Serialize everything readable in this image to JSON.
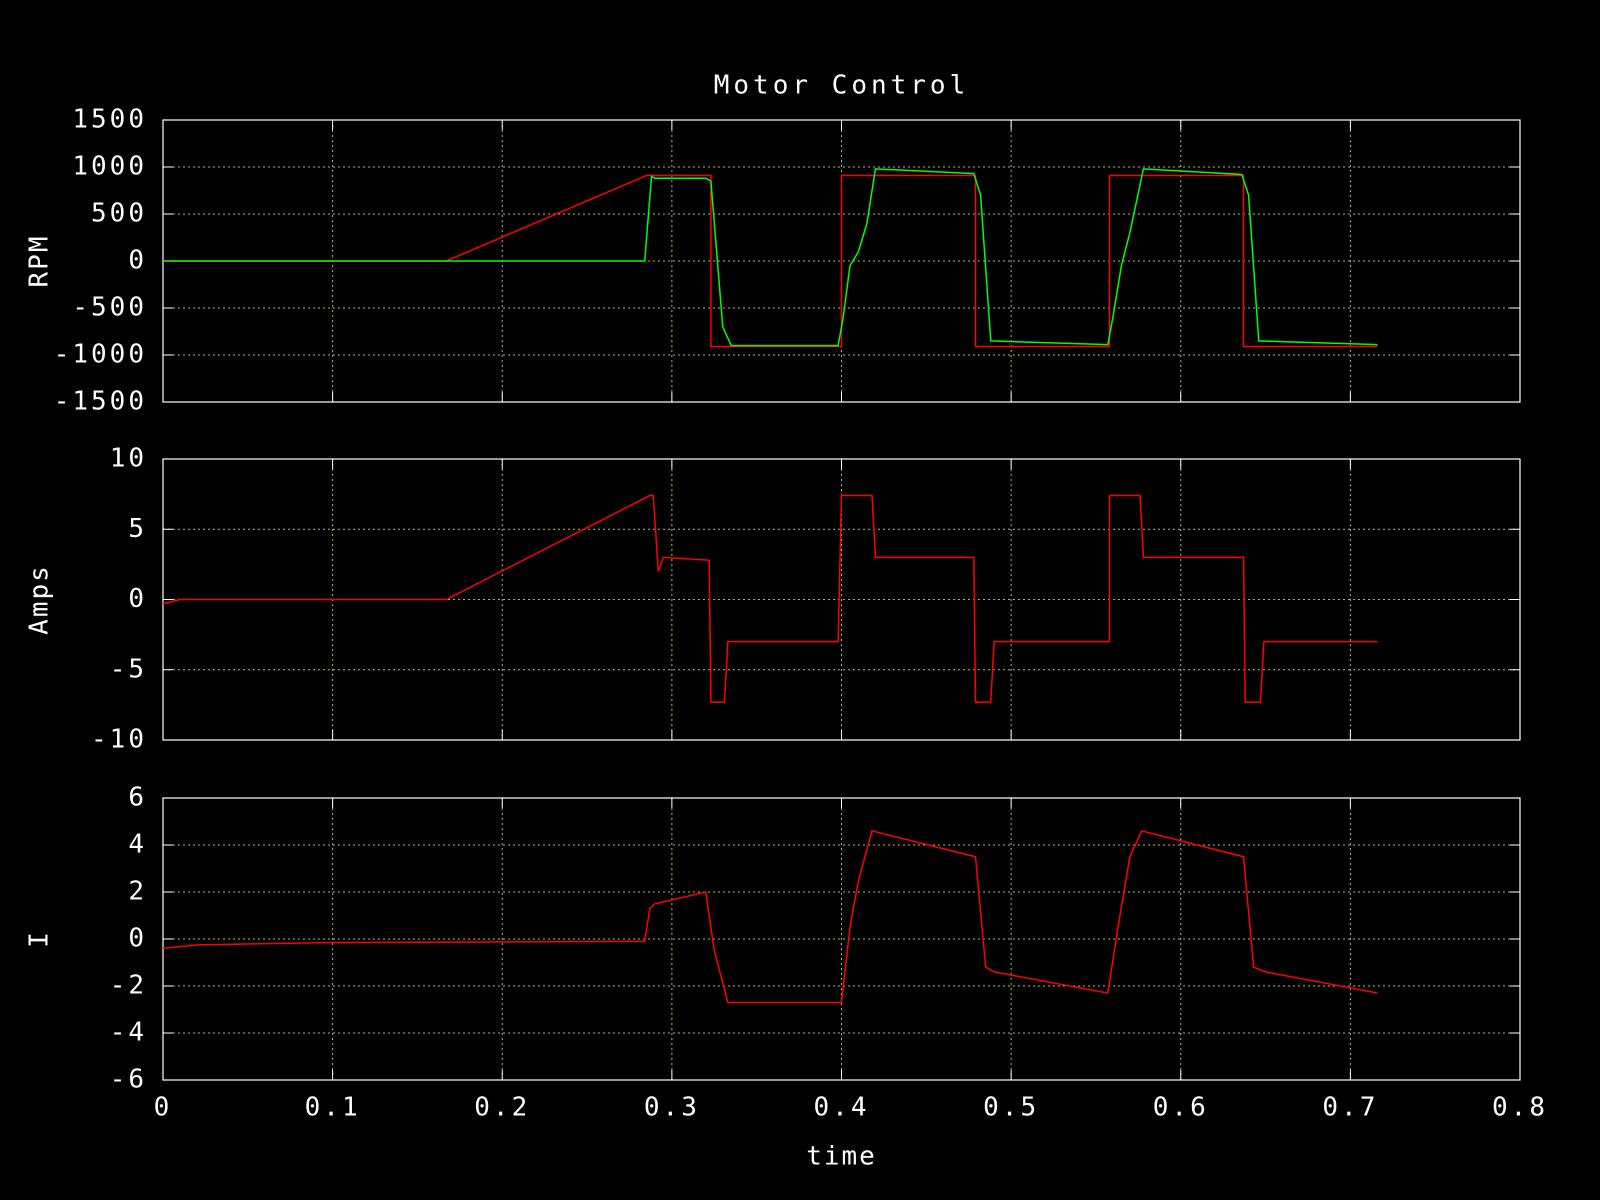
{
  "chart_data": [
    {
      "type": "line",
      "title": "Motor Control",
      "y_label": "RPM",
      "xlim": [
        0,
        0.8
      ],
      "xticks": [
        0,
        0.1,
        0.2,
        0.3,
        0.4,
        0.5,
        0.6,
        0.7,
        0.8
      ],
      "show_xtick_labels": false,
      "ylim": [
        -1500,
        1500
      ],
      "yticks": [
        -1500,
        -1000,
        -500,
        0,
        500,
        1000,
        1500
      ],
      "grid": true,
      "series": [
        {
          "color": "#ff0000",
          "x": [
            0,
            0.167,
            0.285,
            0.323,
            0.323,
            0.4,
            0.4,
            0.479,
            0.479,
            0.558,
            0.558,
            0.637,
            0.637,
            0.716
          ],
          "values": [
            0,
            0,
            910,
            910,
            -910,
            -910,
            910,
            910,
            -910,
            -910,
            910,
            910,
            -910,
            -910
          ]
        },
        {
          "color": "#00ff00",
          "x": [
            0,
            0.284,
            0.288,
            0.29,
            0.32,
            0.323,
            0.33,
            0.335,
            0.398,
            0.401,
            0.405,
            0.41,
            0.415,
            0.42,
            0.478,
            0.482,
            0.488,
            0.557,
            0.56,
            0.565,
            0.57,
            0.578,
            0.636,
            0.64,
            0.646,
            0.716
          ],
          "values": [
            0,
            0,
            900,
            880,
            880,
            850,
            -700,
            -900,
            -900,
            -600,
            -50,
            100,
            400,
            980,
            930,
            700,
            -850,
            -890,
            -600,
            -50,
            300,
            980,
            920,
            700,
            -850,
            -890
          ]
        }
      ]
    },
    {
      "type": "line",
      "y_label": "Amps",
      "xlim": [
        0,
        0.8
      ],
      "xticks": [
        0,
        0.1,
        0.2,
        0.3,
        0.4,
        0.5,
        0.6,
        0.7,
        0.8
      ],
      "show_xtick_labels": false,
      "ylim": [
        -10,
        10
      ],
      "yticks": [
        -10,
        -5,
        0,
        5,
        10
      ],
      "grid": true,
      "series": [
        {
          "color": "#ff0000",
          "x": [
            0,
            0.01,
            0.167,
            0.287,
            0.289,
            0.292,
            0.295,
            0.322,
            0.323,
            0.331,
            0.333,
            0.398,
            0.4,
            0.418,
            0.42,
            0.478,
            0.479,
            0.488,
            0.49,
            0.558,
            0.558,
            0.576,
            0.578,
            0.637,
            0.638,
            0.647,
            0.649,
            0.716
          ],
          "values": [
            -0.3,
            0,
            0,
            7.4,
            7.4,
            2,
            3,
            2.8,
            -7.3,
            -7.3,
            -3,
            -3,
            7.4,
            7.4,
            3,
            3,
            -7.3,
            -7.3,
            -3,
            -3,
            7.4,
            7.4,
            3,
            3,
            -7.3,
            -7.3,
            -3,
            -3
          ]
        }
      ]
    },
    {
      "type": "line",
      "y_label": "I",
      "x_label": "time",
      "xlim": [
        0,
        0.8
      ],
      "xticks": [
        0,
        0.1,
        0.2,
        0.3,
        0.4,
        0.5,
        0.6,
        0.7,
        0.8
      ],
      "show_xtick_labels": true,
      "ylim": [
        -6,
        6
      ],
      "yticks": [
        -6,
        -4,
        -2,
        0,
        2,
        4,
        6
      ],
      "grid": true,
      "series": [
        {
          "color": "#ff0000",
          "x": [
            0,
            0.02,
            0.1,
            0.284,
            0.287,
            0.29,
            0.32,
            0.325,
            0.333,
            0.4,
            0.405,
            0.41,
            0.418,
            0.479,
            0.485,
            0.49,
            0.557,
            0.563,
            0.57,
            0.577,
            0.637,
            0.643,
            0.65,
            0.716
          ],
          "values": [
            -0.4,
            -0.25,
            -0.15,
            -0.1,
            1.3,
            1.5,
            2,
            -0.5,
            -2.7,
            -2.7,
            0.5,
            2.5,
            4.6,
            3.5,
            -1.2,
            -1.4,
            -2.3,
            0.5,
            3.5,
            4.6,
            3.5,
            -1.2,
            -1.4,
            -2.3
          ]
        }
      ]
    }
  ]
}
